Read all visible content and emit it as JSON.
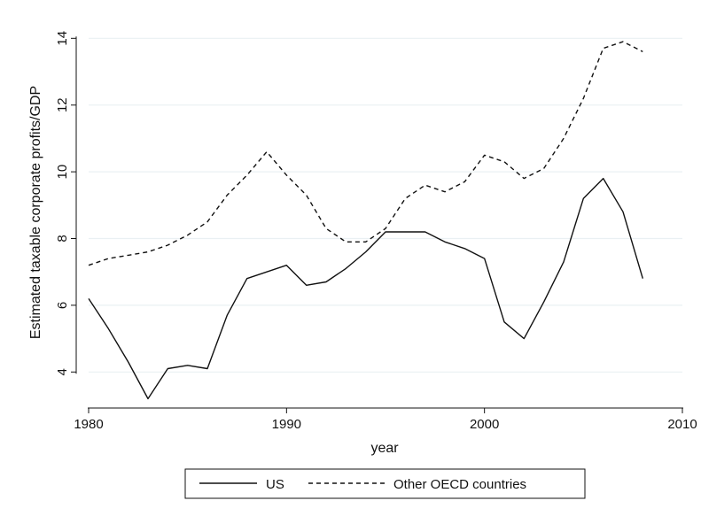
{
  "chart_data": {
    "type": "line",
    "title": "",
    "xlabel": "year",
    "ylabel": "Estimated taxable corporate profits/GDP",
    "xlim": [
      1980,
      2010
    ],
    "ylim": [
      3,
      14.3
    ],
    "x_ticks": [
      1980,
      1990,
      2000,
      2010
    ],
    "y_ticks": [
      4,
      6,
      8,
      10,
      12,
      14
    ],
    "grid": "horizontal",
    "legend_position": "bottom",
    "x": [
      1980,
      1981,
      1982,
      1983,
      1984,
      1985,
      1986,
      1987,
      1988,
      1989,
      1990,
      1991,
      1992,
      1993,
      1994,
      1995,
      1996,
      1997,
      1998,
      1999,
      2000,
      2001,
      2002,
      2003,
      2004,
      2005,
      2006,
      2007,
      2008
    ],
    "series": [
      {
        "name": "US",
        "style": "solid",
        "values": [
          6.2,
          5.3,
          4.3,
          3.2,
          4.1,
          4.2,
          4.1,
          5.7,
          6.8,
          7.0,
          7.2,
          6.6,
          6.7,
          7.1,
          7.6,
          8.2,
          8.2,
          8.2,
          7.9,
          7.7,
          7.4,
          5.5,
          5.0,
          6.1,
          7.3,
          9.2,
          9.8,
          8.8,
          6.8
        ]
      },
      {
        "name": "Other OECD countries",
        "style": "dashed",
        "values": [
          7.2,
          7.4,
          7.5,
          7.6,
          7.8,
          8.1,
          8.5,
          9.3,
          9.9,
          10.6,
          9.9,
          9.3,
          8.3,
          7.9,
          7.9,
          8.3,
          9.2,
          9.6,
          9.4,
          9.7,
          10.5,
          10.3,
          9.8,
          10.1,
          11.0,
          12.2,
          13.7,
          13.9,
          13.6
        ]
      }
    ]
  },
  "colors": {
    "line": "#111111",
    "grid": "#eaf0f3",
    "axis": "#111111",
    "legend_border": "#111111",
    "background": "#ffffff"
  }
}
